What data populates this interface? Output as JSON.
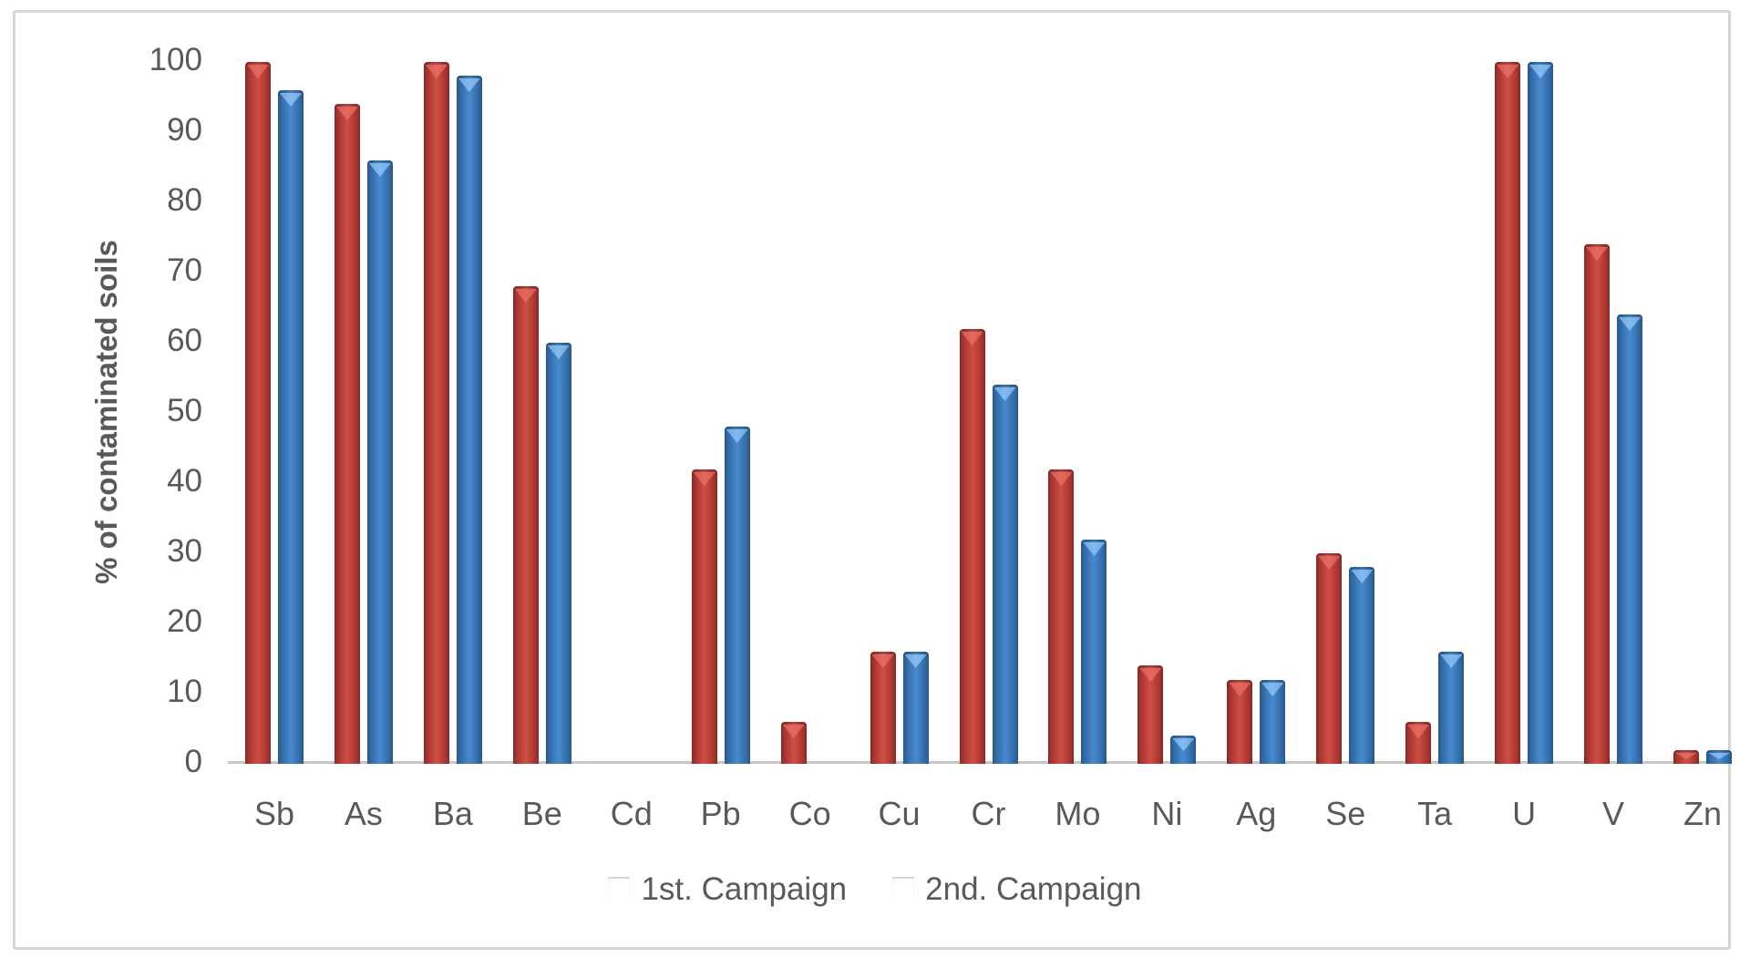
{
  "chart_data": {
    "type": "bar",
    "title": "",
    "xlabel": "",
    "ylabel": "% of contaminated soils",
    "ylim": [
      0,
      100
    ],
    "yticks": [
      0,
      10,
      20,
      30,
      40,
      50,
      60,
      70,
      80,
      90,
      100
    ],
    "grid": false,
    "legend_position": "bottom-center",
    "categories": [
      "Sb",
      "As",
      "Ba",
      "Be",
      "Cd",
      "Pb",
      "Co",
      "Cu",
      "Cr",
      "Mo",
      "Ni",
      "Ag",
      "Se",
      "Ta",
      "U",
      "V",
      "Zn"
    ],
    "series": [
      {
        "name": "1st. Campaign",
        "color": "#c2443c",
        "values": [
          100,
          94,
          100,
          68,
          0,
          42,
          6,
          16,
          62,
          42,
          14,
          12,
          30,
          6,
          100,
          74,
          2
        ]
      },
      {
        "name": "2nd. Campaign",
        "color": "#3f7fc0",
        "values": [
          96,
          86,
          98,
          60,
          0,
          48,
          0,
          16,
          54,
          32,
          4,
          12,
          28,
          16,
          100,
          64,
          2
        ]
      }
    ]
  },
  "ui": {
    "text_color": "#595959",
    "axis_line_color": "#c6c6c6",
    "frame_border_color": "#d6d6d6",
    "background_color": "#ffffff"
  }
}
